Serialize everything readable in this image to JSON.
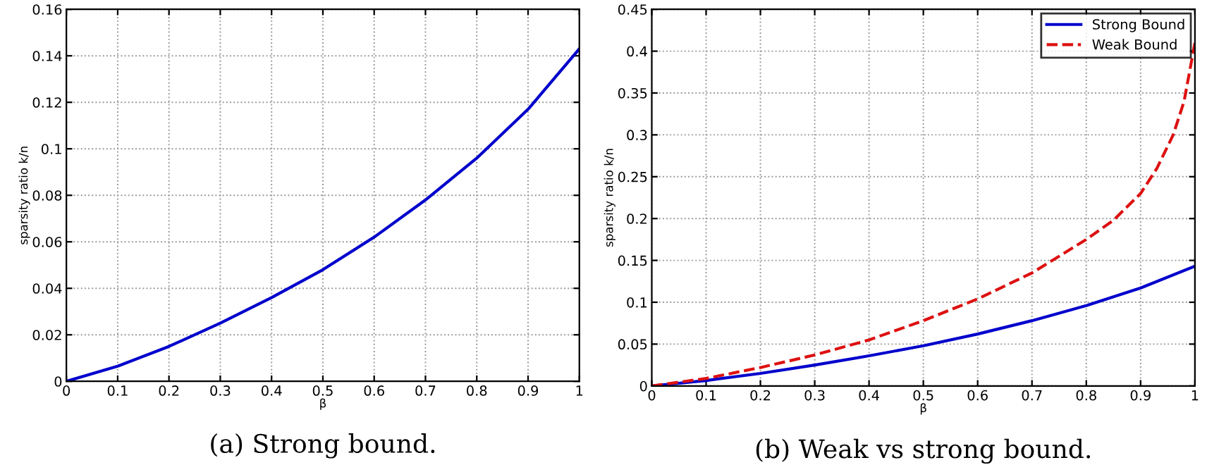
{
  "chart_data": [
    {
      "type": "line",
      "title": "(a) Strong bound.",
      "xlabel": "β",
      "ylabel": "sparsity ratio k/n",
      "x": [
        0,
        0.1,
        0.2,
        0.3,
        0.4,
        0.5,
        0.6,
        0.7,
        0.8,
        0.9,
        1.0
      ],
      "xlim": [
        0,
        1
      ],
      "ylim": [
        0,
        0.16
      ],
      "xticks": [
        0,
        0.1,
        0.2,
        0.3,
        0.4,
        0.5,
        0.6,
        0.7,
        0.8,
        0.9,
        1
      ],
      "yticks": [
        0,
        0.02,
        0.04,
        0.06,
        0.08,
        0.1,
        0.12,
        0.14,
        0.16
      ],
      "grid": true,
      "series": [
        {
          "color": "#0000cc",
          "line_style": "solid",
          "values": [
            0,
            0.0065,
            0.015,
            0.025,
            0.036,
            0.048,
            0.062,
            0.078,
            0.096,
            0.117,
            0.143
          ]
        }
      ]
    },
    {
      "type": "line",
      "title": "(b) Weak vs strong bound.",
      "xlabel": "β",
      "ylabel": "sparsity ratio k/n",
      "xlim": [
        0,
        1
      ],
      "ylim": [
        0,
        0.45
      ],
      "xticks": [
        0,
        0.1,
        0.2,
        0.3,
        0.4,
        0.5,
        0.6,
        0.7,
        0.8,
        0.9,
        1
      ],
      "yticks": [
        0,
        0.05,
        0.1,
        0.15,
        0.2,
        0.25,
        0.3,
        0.35,
        0.4,
        0.45
      ],
      "grid": true,
      "legend": "top right",
      "series": [
        {
          "name": "Strong Bound",
          "color": "#0000cc",
          "line_style": "solid",
          "x": [
            0,
            0.1,
            0.2,
            0.3,
            0.4,
            0.5,
            0.6,
            0.7,
            0.8,
            0.9,
            1.0
          ],
          "values": [
            0,
            0.0065,
            0.015,
            0.025,
            0.036,
            0.048,
            0.062,
            0.078,
            0.096,
            0.117,
            0.143
          ]
        },
        {
          "name": "Weak Bound",
          "color": "#dd1111",
          "line_style": "dashed",
          "x": [
            0,
            0.1,
            0.2,
            0.3,
            0.4,
            0.5,
            0.6,
            0.7,
            0.8,
            0.85,
            0.9,
            0.93,
            0.96,
            0.98,
            1.0
          ],
          "values": [
            0,
            0.009,
            0.022,
            0.037,
            0.055,
            0.078,
            0.104,
            0.135,
            0.175,
            0.198,
            0.23,
            0.26,
            0.3,
            0.34,
            0.41
          ]
        }
      ]
    }
  ]
}
